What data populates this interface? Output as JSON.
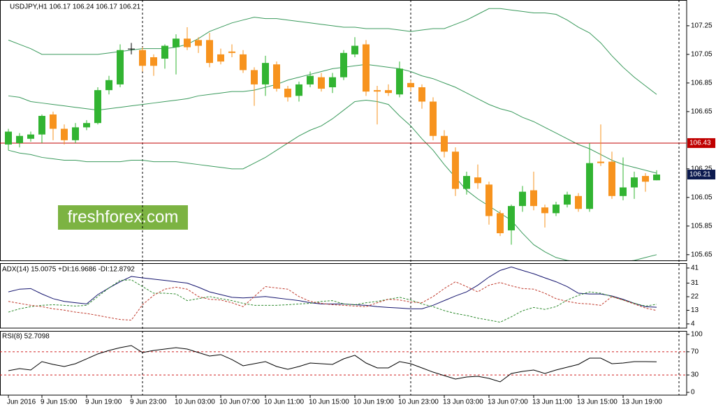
{
  "chart_data": [
    {
      "type": "candlestick",
      "title": "USDJPY,H1 106.17 106.24 106.17 106.21",
      "watermark": "freshforex.com",
      "categories": [
        "Jun 2016",
        null,
        null,
        "9 Jun 15:00",
        null,
        null,
        null,
        "9 Jun 19:00",
        null,
        null,
        null,
        "9 Jun 23:00",
        null,
        null,
        null,
        "10 Jun 03:00",
        null,
        null,
        null,
        "10 Jun 07:00",
        null,
        null,
        null,
        "10 Jun 11:00",
        null,
        null,
        null,
        "10 Jun 15:00",
        null,
        null,
        null,
        "10 Jun 19:00",
        null,
        null,
        null,
        "10 Jun 23:00",
        null,
        null,
        null,
        "13 Jun 03:00",
        null,
        null,
        null,
        "13 Jun 07:00",
        null,
        null,
        null,
        "13 Jun 11:00",
        null,
        null,
        null,
        "13 Jun 15:00",
        null,
        null,
        null,
        "13 Jun 19:00",
        null,
        null,
        null
      ],
      "open": [
        106.42,
        106.43,
        106.46,
        106.49,
        106.63,
        106.53,
        106.45,
        106.54,
        106.57,
        106.8,
        106.84,
        107.09,
        107.08,
        107.03,
        107.02,
        107.1,
        107.16,
        107.15,
        107.15,
        107.05,
        107.07,
        107.05,
        106.94,
        106.84,
        106.98,
        106.81,
        106.76,
        106.84,
        106.89,
        106.82,
        106.89,
        107.05,
        107.12,
        106.8,
        106.8,
        106.77,
        106.85,
        106.82,
        106.72,
        106.48,
        106.37,
        106.11,
        106.19,
        106.14,
        105.94,
        105.82,
        105.99,
        106.1,
        105.98,
        105.94,
        106.0,
        106.06,
        105.97,
        106.3,
        106.3,
        106.06,
        106.12,
        106.2,
        106.17
      ],
      "high": [
        106.53,
        106.5,
        106.51,
        106.63,
        106.65,
        106.56,
        106.57,
        106.59,
        106.82,
        106.9,
        107.12,
        107.13,
        107.1,
        107.05,
        107.12,
        107.19,
        107.24,
        107.17,
        107.2,
        107.09,
        107.12,
        107.08,
        106.96,
        107.04,
        107.0,
        106.83,
        106.86,
        106.93,
        106.92,
        106.92,
        107.08,
        107.17,
        107.15,
        106.83,
        106.84,
        107.0,
        106.87,
        106.84,
        106.75,
        106.52,
        106.4,
        106.23,
        106.28,
        106.16,
        105.96,
        106.0,
        106.13,
        106.23,
        106.0,
        106.02,
        106.09,
        106.08,
        106.43,
        106.56,
        106.37,
        106.33,
        106.23,
        106.22,
        106.24
      ],
      "low": [
        106.38,
        106.4,
        106.44,
        106.43,
        106.45,
        106.42,
        106.43,
        106.52,
        106.56,
        106.77,
        106.82,
        107.05,
        106.93,
        106.9,
        106.95,
        106.91,
        107.08,
        107.06,
        106.96,
        106.98,
        107.03,
        106.92,
        106.69,
        106.76,
        106.79,
        106.72,
        106.72,
        106.82,
        106.79,
        106.78,
        106.87,
        107.03,
        106.76,
        106.56,
        106.76,
        106.75,
        106.79,
        106.67,
        106.45,
        106.33,
        106.06,
        106.07,
        106.11,
        105.86,
        105.78,
        105.72,
        105.95,
        105.96,
        105.84,
        105.92,
        105.98,
        105.95,
        105.95,
        106.27,
        106.04,
        106.03,
        106.04,
        106.09,
        106.17
      ],
      "close": [
        106.51,
        106.48,
        106.49,
        106.62,
        106.53,
        106.45,
        106.54,
        106.57,
        106.8,
        106.87,
        107.08,
        107.09,
        106.97,
        106.97,
        107.11,
        107.16,
        107.1,
        107.11,
        106.99,
        107.0,
        107.06,
        106.94,
        106.84,
        106.99,
        106.81,
        106.75,
        106.84,
        106.9,
        106.81,
        106.89,
        107.06,
        107.11,
        106.79,
        106.79,
        106.78,
        106.95,
        106.82,
        106.72,
        106.48,
        106.37,
        106.11,
        106.2,
        106.15,
        105.92,
        105.8,
        105.99,
        106.09,
        105.99,
        105.94,
        106.0,
        106.07,
        105.97,
        106.29,
        106.29,
        106.06,
        106.12,
        106.19,
        106.16,
        106.21
      ],
      "up_color": "#32b432",
      "down_color": "#f7931e",
      "bands": [
        {
          "color": "#3a9a5c",
          "values": [
            107.15,
            107.12,
            107.09,
            107.05,
            107.05,
            107.05,
            107.05,
            107.05,
            107.05,
            107.06,
            107.07,
            107.08,
            107.09,
            107.09,
            107.09,
            107.1,
            107.12,
            107.16,
            107.21,
            107.24,
            107.27,
            107.29,
            107.31,
            107.3,
            107.3,
            107.29,
            107.28,
            107.27,
            107.26,
            107.25,
            107.24,
            107.24,
            107.23,
            107.23,
            107.23,
            107.22,
            107.21,
            107.22,
            107.23,
            107.23,
            107.26,
            107.29,
            107.33,
            107.37,
            107.37,
            107.36,
            107.35,
            107.34,
            107.34,
            107.33,
            107.29,
            107.24,
            107.2,
            107.13,
            107.04,
            106.96,
            106.89,
            106.83,
            106.77
          ]
        },
        {
          "color": "#3a9a5c",
          "values": [
            106.76,
            106.75,
            106.72,
            106.71,
            106.7,
            106.69,
            106.68,
            106.67,
            106.66,
            106.67,
            106.68,
            106.69,
            106.7,
            106.71,
            106.72,
            106.73,
            106.74,
            106.76,
            106.77,
            106.78,
            106.79,
            106.79,
            106.8,
            106.82,
            106.84,
            106.87,
            106.89,
            106.91,
            106.93,
            106.95,
            106.96,
            106.97,
            106.98,
            106.97,
            106.96,
            106.95,
            106.93,
            106.9,
            106.88,
            106.85,
            106.82,
            106.78,
            106.74,
            106.7,
            106.67,
            106.65,
            106.61,
            106.58,
            106.54,
            106.5,
            106.46,
            106.42,
            106.39,
            106.35,
            106.31,
            106.28,
            106.26,
            106.24,
            106.22
          ]
        },
        {
          "color": "#3a9a5c",
          "values": [
            106.38,
            106.36,
            106.35,
            106.33,
            106.32,
            106.31,
            106.31,
            106.3,
            106.3,
            106.3,
            106.3,
            106.31,
            106.31,
            106.3,
            106.3,
            106.3,
            106.29,
            106.28,
            106.27,
            106.26,
            106.25,
            106.25,
            106.29,
            106.33,
            106.38,
            106.43,
            106.48,
            106.52,
            106.55,
            106.6,
            106.66,
            106.72,
            106.73,
            106.72,
            106.7,
            106.62,
            106.55,
            106.46,
            106.38,
            106.28,
            106.19,
            106.1,
            106.04,
            105.99,
            105.94,
            105.89,
            105.8,
            105.72,
            105.67,
            105.63,
            105.61,
            105.6,
            105.59,
            105.59,
            105.59,
            105.6,
            105.61,
            105.63,
            105.65
          ]
        }
      ],
      "hline": {
        "value": 106.43,
        "color": "#c00000"
      },
      "bid": {
        "value": 106.21,
        "color": "#0c1a4f"
      },
      "ylim": [
        105.61,
        107.43
      ],
      "yticks": [
        107.25,
        107.05,
        106.85,
        106.65,
        106.25,
        106.05,
        105.85,
        105.65
      ]
    },
    {
      "type": "line",
      "title": "ADX(14) 15.0075 +DI:16.9686 -DI:12.8792",
      "series": [
        {
          "color": "#14146e",
          "dash": false,
          "values": [
            25.2,
            27,
            27.4,
            23.8,
            20.7,
            18.9,
            18,
            17.2,
            23.4,
            27.8,
            31.9,
            35.4,
            34.5,
            33.6,
            32.8,
            31.9,
            31,
            28.3,
            25.2,
            23.4,
            21.6,
            21.2,
            21.6,
            22.1,
            21.2,
            20.3,
            19.4,
            18,
            17.2,
            17.2,
            17.2,
            16.7,
            16.3,
            15.4,
            14.9,
            14.5,
            14,
            14,
            16.3,
            19.4,
            22.5,
            25.2,
            29.6,
            35,
            39.4,
            41.7,
            39.4,
            37.2,
            34.5,
            31.9,
            28.7,
            24.3,
            23.8,
            23.8,
            22.5,
            20.3,
            17.6,
            15.4,
            15.01
          ]
        },
        {
          "color": "#2e8b2e",
          "dash": true,
          "values": [
            11.8,
            14,
            15.4,
            16.3,
            16.7,
            16.3,
            15.8,
            16.3,
            22.1,
            27.8,
            32.8,
            33.2,
            28.7,
            24.3,
            24.3,
            23.8,
            19.4,
            20.7,
            22.1,
            20.7,
            19.4,
            17.6,
            16.3,
            16.3,
            16.3,
            16.7,
            17.2,
            17.6,
            18.9,
            19.4,
            17.2,
            16.7,
            18,
            18.9,
            20.3,
            21.6,
            19.8,
            17.2,
            15.4,
            12.8,
            10.9,
            9.6,
            7.8,
            6.5,
            5.1,
            8.7,
            12.7,
            14.9,
            13.6,
            15.4,
            19.8,
            22.9,
            25.2,
            24.3,
            22.1,
            19.8,
            17.6,
            15.8,
            16.97
          ]
        },
        {
          "color": "#c0392b",
          "dash": true,
          "values": [
            18.9,
            17.6,
            16.3,
            15.4,
            14,
            13.1,
            11.8,
            10.9,
            9.6,
            8.2,
            6.9,
            6.5,
            16.7,
            22.9,
            27,
            28.3,
            27,
            22.1,
            20.3,
            19.8,
            18,
            15.4,
            22.1,
            28.7,
            27.8,
            27,
            22.1,
            18.9,
            17.6,
            16.7,
            16.3,
            15.8,
            15.4,
            18,
            20.3,
            19.8,
            18.5,
            18,
            22.1,
            27.4,
            31.9,
            28.7,
            25.2,
            29.6,
            31.4,
            29.2,
            27.4,
            27,
            24.3,
            20.7,
            18.9,
            17.6,
            17.2,
            16.3,
            22.1,
            19.8,
            17.2,
            14.5,
            12.88
          ]
        }
      ],
      "ylim": [
        1.2,
        44.2
      ],
      "yticks": [
        41,
        31,
        22,
        13,
        4
      ]
    },
    {
      "type": "line",
      "title": "RSI(8) 52.7098",
      "series": [
        {
          "color": "#000000",
          "dash": false,
          "values": [
            37.3,
            41,
            38.6,
            53,
            48.2,
            44.6,
            49.4,
            57.8,
            66.3,
            72.3,
            77.1,
            80.7,
            68.7,
            72.3,
            74.7,
            77.1,
            74.7,
            68.7,
            62.7,
            65.1,
            56.6,
            45.8,
            49.4,
            53,
            44.6,
            39.8,
            44.6,
            50.6,
            49.4,
            48.2,
            57.8,
            63.9,
            50.6,
            42.2,
            42.2,
            53,
            49.4,
            42.2,
            34.9,
            28.9,
            22.9,
            26.5,
            27.7,
            24.1,
            18.1,
            32.5,
            36.1,
            38.6,
            32.5,
            38.6,
            43.4,
            48.2,
            59,
            59,
            49.4,
            50.6,
            53,
            53,
            52.71
          ]
        }
      ],
      "levels": [
        70,
        30
      ],
      "level_color": "#d02020",
      "ylim": [
        -4.8,
        106
      ],
      "yticks": [
        100,
        70,
        30,
        0
      ]
    }
  ]
}
